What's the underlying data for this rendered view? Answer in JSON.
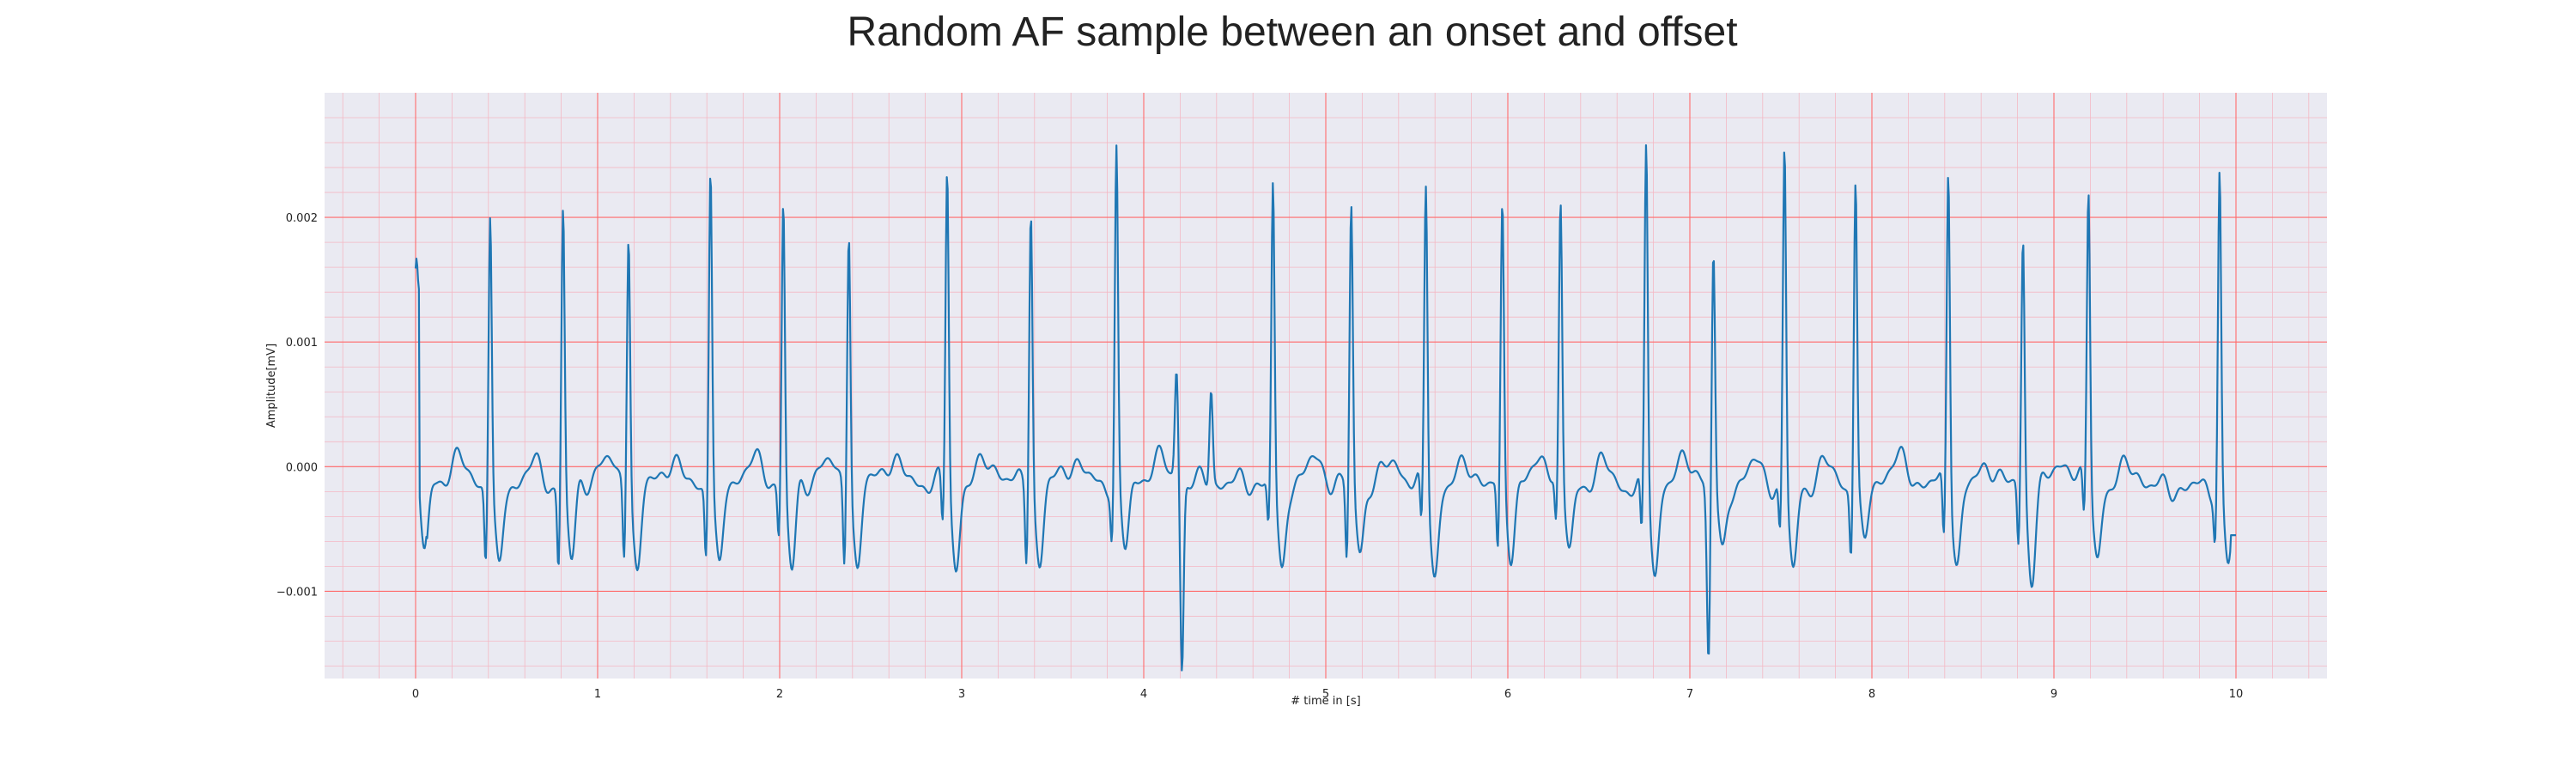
{
  "chart_data": {
    "type": "line",
    "title": "Random AF sample between an onset and offset",
    "xlabel": "# time in [s]",
    "ylabel": "Amplitude[mV]",
    "xlim": [
      -0.5,
      10.5
    ],
    "ylim": [
      -0.0017,
      0.003
    ],
    "x_ticks": [
      0,
      1,
      2,
      3,
      4,
      5,
      6,
      7,
      8,
      9,
      10
    ],
    "x_tick_labels": [
      "0",
      "1",
      "2",
      "3",
      "4",
      "5",
      "6",
      "7",
      "8",
      "9",
      "10"
    ],
    "y_ticks": [
      -0.001,
      0.0,
      0.001,
      0.002
    ],
    "y_tick_labels": [
      "−0.001",
      "0.000",
      "0.001",
      "0.002"
    ],
    "grid": true,
    "legend": false,
    "colors": {
      "line": "#1f77b4",
      "background": "#eaeaf2",
      "major_grid": "#ff6b6b",
      "minor_grid": "#f4b8c4"
    },
    "series": [
      {
        "x_start": 0,
        "x_end": 10,
        "beats": [
          [
            0.0,
            0.00167
          ],
          [
            0.41,
            0.00222
          ],
          [
            0.81,
            0.00228
          ],
          [
            1.17,
            0.00212
          ],
          [
            1.62,
            0.00261
          ],
          [
            2.02,
            0.00231
          ],
          [
            2.38,
            0.00214
          ],
          [
            2.92,
            0.00256
          ],
          [
            3.38,
            0.00228
          ],
          [
            3.85,
            0.00268
          ],
          [
            4.71,
            0.00242
          ],
          [
            5.14,
            0.00223
          ],
          [
            5.55,
            0.00245
          ],
          [
            5.97,
            0.00223
          ],
          [
            6.29,
            0.00221
          ],
          [
            6.76,
            0.00278
          ],
          [
            7.13,
            0.00187
          ],
          [
            7.52,
            0.00275
          ],
          [
            7.91,
            0.0025
          ],
          [
            8.42,
            0.00257
          ],
          [
            8.83,
            0.002
          ],
          [
            9.19,
            0.00239
          ],
          [
            9.91,
            0.00256
          ]
        ],
        "extrema": [
          [
            0.0,
            0.0014
          ],
          [
            0.04,
            -0.0005
          ],
          [
            4.18,
            0.0009
          ],
          [
            4.21,
            -0.00148
          ],
          [
            4.37,
            0.00078
          ],
          [
            7.1,
            -0.00092
          ],
          [
            10.0,
            -0.00055
          ]
        ]
      }
    ]
  }
}
